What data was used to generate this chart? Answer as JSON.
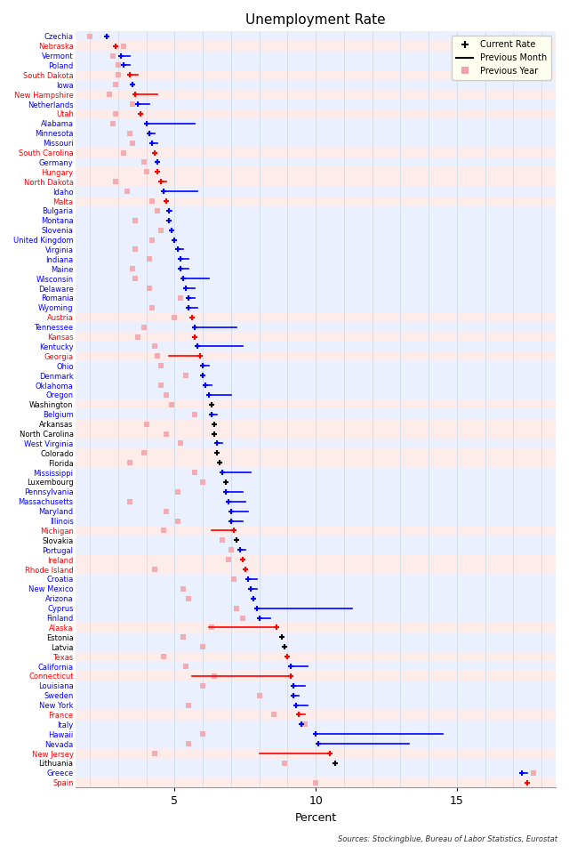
{
  "title": "Unemployment Rate",
  "xlabel": "Percent",
  "source_text": "Sources: Stockingblue, Bureau of Labor Statistics, Eurostat",
  "xlim": [
    1.5,
    18.5
  ],
  "xticks": [
    5,
    10,
    15
  ],
  "legend_items": [
    "Current Rate",
    "Previous Month",
    "Previous Year"
  ],
  "entries": [
    {
      "label": "Czechia",
      "color": "blue",
      "current": 2.6,
      "prev_month": null,
      "prev_year": 2.0
    },
    {
      "label": "Nebraska",
      "color": "red",
      "current": 2.9,
      "prev_month": null,
      "prev_year": 3.2
    },
    {
      "label": "Vermont",
      "color": "blue",
      "current": 3.1,
      "prev_month": 3.4,
      "prev_year": 2.8
    },
    {
      "label": "Poland",
      "color": "blue",
      "current": 3.2,
      "prev_month": 3.4,
      "prev_year": 3.0
    },
    {
      "label": "South Dakota",
      "color": "red",
      "current": 3.4,
      "prev_month": 3.7,
      "prev_year": 3.0
    },
    {
      "label": "Iowa",
      "color": "blue",
      "current": 3.5,
      "prev_month": null,
      "prev_year": 2.9
    },
    {
      "label": "New Hampshire",
      "color": "red",
      "current": 3.6,
      "prev_month": 4.4,
      "prev_year": 2.7
    },
    {
      "label": "Netherlands",
      "color": "blue",
      "current": 3.7,
      "prev_month": 4.1,
      "prev_year": 3.5
    },
    {
      "label": "Utah",
      "color": "red",
      "current": 3.8,
      "prev_month": null,
      "prev_year": 2.9
    },
    {
      "label": "Alabama",
      "color": "blue",
      "current": 4.0,
      "prev_month": 5.7,
      "prev_year": 2.8
    },
    {
      "label": "Minnesota",
      "color": "blue",
      "current": 4.1,
      "prev_month": 4.3,
      "prev_year": 3.4
    },
    {
      "label": "Missouri",
      "color": "blue",
      "current": 4.2,
      "prev_month": 4.4,
      "prev_year": 3.5
    },
    {
      "label": "South Carolina",
      "color": "red",
      "current": 4.3,
      "prev_month": null,
      "prev_year": 3.2
    },
    {
      "label": "Germany",
      "color": "blue",
      "current": 4.4,
      "prev_month": null,
      "prev_year": 3.9
    },
    {
      "label": "Hungary",
      "color": "red",
      "current": 4.4,
      "prev_month": null,
      "prev_year": 4.0
    },
    {
      "label": "North Dakota",
      "color": "red",
      "current": 4.5,
      "prev_month": 4.7,
      "prev_year": 2.9
    },
    {
      "label": "Idaho",
      "color": "blue",
      "current": 4.6,
      "prev_month": 5.8,
      "prev_year": 3.3
    },
    {
      "label": "Malta",
      "color": "red",
      "current": 4.7,
      "prev_month": null,
      "prev_year": 4.2
    },
    {
      "label": "Bulgaria",
      "color": "blue",
      "current": 4.8,
      "prev_month": 4.9,
      "prev_year": 4.4
    },
    {
      "label": "Montana",
      "color": "blue",
      "current": 4.8,
      "prev_month": null,
      "prev_year": 3.6
    },
    {
      "label": "Slovenia",
      "color": "blue",
      "current": 4.9,
      "prev_month": null,
      "prev_year": 4.5
    },
    {
      "label": "United Kingdom",
      "color": "blue",
      "current": 5.0,
      "prev_month": null,
      "prev_year": 4.2
    },
    {
      "label": "Virginia",
      "color": "blue",
      "current": 5.1,
      "prev_month": 5.3,
      "prev_year": 3.6
    },
    {
      "label": "Indiana",
      "color": "blue",
      "current": 5.2,
      "prev_month": 5.5,
      "prev_year": 4.1
    },
    {
      "label": "Maine",
      "color": "blue",
      "current": 5.2,
      "prev_month": 5.5,
      "prev_year": 3.5
    },
    {
      "label": "Wisconsin",
      "color": "blue",
      "current": 5.3,
      "prev_month": 6.2,
      "prev_year": 3.6
    },
    {
      "label": "Delaware",
      "color": "blue",
      "current": 5.4,
      "prev_month": 5.7,
      "prev_year": 4.1
    },
    {
      "label": "Romania",
      "color": "blue",
      "current": 5.5,
      "prev_month": 5.7,
      "prev_year": 5.2
    },
    {
      "label": "Wyoming",
      "color": "blue",
      "current": 5.5,
      "prev_month": 5.8,
      "prev_year": 4.2
    },
    {
      "label": "Austria",
      "color": "red",
      "current": 5.6,
      "prev_month": null,
      "prev_year": 5.0
    },
    {
      "label": "Tennessee",
      "color": "blue",
      "current": 5.7,
      "prev_month": 7.2,
      "prev_year": 3.9
    },
    {
      "label": "Kansas",
      "color": "red",
      "current": 5.7,
      "prev_month": null,
      "prev_year": 3.7
    },
    {
      "label": "Kentucky",
      "color": "blue",
      "current": 5.8,
      "prev_month": 7.4,
      "prev_year": 4.3
    },
    {
      "label": "Georgia",
      "color": "red",
      "current": 5.9,
      "prev_month": 4.8,
      "prev_year": 4.4
    },
    {
      "label": "Ohio",
      "color": "blue",
      "current": 6.0,
      "prev_month": 6.2,
      "prev_year": 4.5
    },
    {
      "label": "Denmark",
      "color": "blue",
      "current": 6.0,
      "prev_month": null,
      "prev_year": 5.4
    },
    {
      "label": "Oklahoma",
      "color": "blue",
      "current": 6.1,
      "prev_month": 6.3,
      "prev_year": 4.5
    },
    {
      "label": "Oregon",
      "color": "blue",
      "current": 6.2,
      "prev_month": 7.0,
      "prev_year": 4.7
    },
    {
      "label": "Washington",
      "color": "black",
      "current": 6.3,
      "prev_month": null,
      "prev_year": 4.9
    },
    {
      "label": "Belgium",
      "color": "blue",
      "current": 6.3,
      "prev_month": 6.5,
      "prev_year": 5.7
    },
    {
      "label": "Arkansas",
      "color": "black",
      "current": 6.4,
      "prev_month": null,
      "prev_year": 4.0
    },
    {
      "label": "North Carolina",
      "color": "black",
      "current": 6.4,
      "prev_month": null,
      "prev_year": 4.7
    },
    {
      "label": "West Virginia",
      "color": "blue",
      "current": 6.5,
      "prev_month": 6.7,
      "prev_year": 5.2
    },
    {
      "label": "Colorado",
      "color": "black",
      "current": 6.5,
      "prev_month": null,
      "prev_year": 3.9
    },
    {
      "label": "Florida",
      "color": "black",
      "current": 6.6,
      "prev_month": null,
      "prev_year": 3.4
    },
    {
      "label": "Mississippi",
      "color": "blue",
      "current": 6.7,
      "prev_month": 7.7,
      "prev_year": 5.7
    },
    {
      "label": "Luxembourg",
      "color": "black",
      "current": 6.8,
      "prev_month": null,
      "prev_year": 6.0
    },
    {
      "label": "Pennsylvania",
      "color": "blue",
      "current": 6.8,
      "prev_month": 7.4,
      "prev_year": 5.1
    },
    {
      "label": "Massachusetts",
      "color": "blue",
      "current": 6.9,
      "prev_month": 7.5,
      "prev_year": 3.4
    },
    {
      "label": "Maryland",
      "color": "blue",
      "current": 7.0,
      "prev_month": 7.6,
      "prev_year": 4.7
    },
    {
      "label": "Illinois",
      "color": "blue",
      "current": 7.0,
      "prev_month": 7.4,
      "prev_year": 5.1
    },
    {
      "label": "Michigan",
      "color": "red",
      "current": 7.1,
      "prev_month": 6.3,
      "prev_year": 4.6
    },
    {
      "label": "Slovakia",
      "color": "black",
      "current": 7.2,
      "prev_month": null,
      "prev_year": 6.7
    },
    {
      "label": "Portugal",
      "color": "blue",
      "current": 7.3,
      "prev_month": 7.5,
      "prev_year": 7.0
    },
    {
      "label": "Ireland",
      "color": "red",
      "current": 7.4,
      "prev_month": null,
      "prev_year": 6.9
    },
    {
      "label": "Rhode Island",
      "color": "red",
      "current": 7.5,
      "prev_month": null,
      "prev_year": 4.3
    },
    {
      "label": "Croatia",
      "color": "blue",
      "current": 7.6,
      "prev_month": 7.9,
      "prev_year": 7.1
    },
    {
      "label": "New Mexico",
      "color": "blue",
      "current": 7.7,
      "prev_month": 7.9,
      "prev_year": 5.3
    },
    {
      "label": "Arizona",
      "color": "blue",
      "current": 7.8,
      "prev_month": null,
      "prev_year": 5.5
    },
    {
      "label": "Cyprus",
      "color": "blue",
      "current": 7.9,
      "prev_month": 11.3,
      "prev_year": 7.2
    },
    {
      "label": "Finland",
      "color": "blue",
      "current": 8.0,
      "prev_month": 8.4,
      "prev_year": 7.4
    },
    {
      "label": "Alaska",
      "color": "red",
      "current": 8.6,
      "prev_month": 6.2,
      "prev_year": 6.3
    },
    {
      "label": "Estonia",
      "color": "black",
      "current": 8.8,
      "prev_month": null,
      "prev_year": 5.3
    },
    {
      "label": "Latvia",
      "color": "black",
      "current": 8.9,
      "prev_month": null,
      "prev_year": 6.0
    },
    {
      "label": "Texas",
      "color": "red",
      "current": 9.0,
      "prev_month": null,
      "prev_year": 4.6
    },
    {
      "label": "California",
      "color": "blue",
      "current": 9.1,
      "prev_month": 9.7,
      "prev_year": 5.4
    },
    {
      "label": "Connecticut",
      "color": "red",
      "current": 9.1,
      "prev_month": 5.6,
      "prev_year": 6.4
    },
    {
      "label": "Louisiana",
      "color": "blue",
      "current": 9.2,
      "prev_month": 9.6,
      "prev_year": 6.0
    },
    {
      "label": "Sweden",
      "color": "blue",
      "current": 9.2,
      "prev_month": 9.4,
      "prev_year": 8.0
    },
    {
      "label": "New York",
      "color": "blue",
      "current": 9.3,
      "prev_month": 9.7,
      "prev_year": 5.5
    },
    {
      "label": "France",
      "color": "red",
      "current": 9.4,
      "prev_month": 9.6,
      "prev_year": 8.5
    },
    {
      "label": "Italy",
      "color": "blue",
      "current": 9.5,
      "prev_month": null,
      "prev_year": 9.6
    },
    {
      "label": "Hawaii",
      "color": "blue",
      "current": 10.0,
      "prev_month": 14.5,
      "prev_year": 6.0
    },
    {
      "label": "Nevada",
      "color": "blue",
      "current": 10.1,
      "prev_month": 13.3,
      "prev_year": 5.5
    },
    {
      "label": "New Jersey",
      "color": "red",
      "current": 10.5,
      "prev_month": 8.0,
      "prev_year": 4.3
    },
    {
      "label": "Lithuania",
      "color": "black",
      "current": 10.7,
      "prev_month": null,
      "prev_year": 8.9
    },
    {
      "label": "Greece",
      "color": "blue",
      "current": 17.3,
      "prev_month": 17.5,
      "prev_year": 17.7
    },
    {
      "label": "Spain",
      "color": "red",
      "current": 17.5,
      "prev_month": null,
      "prev_year": 10.0
    }
  ]
}
